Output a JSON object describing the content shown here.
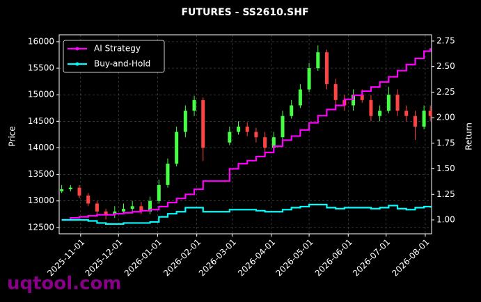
{
  "chart_data": {
    "type": "candlestick",
    "title": "FUTURES - SS2610.SHF",
    "ylabel": "Price",
    "y2label": "Return",
    "watermark": "uqtool.com",
    "x": [
      "2025-10-17",
      "2025-10-24",
      "2025-10-31",
      "2025-11-07",
      "2025-11-14",
      "2025-11-21",
      "2025-11-28",
      "2025-12-05",
      "2025-12-12",
      "2025-12-19",
      "2025-12-26",
      "2026-01-02",
      "2026-01-09",
      "2026-01-16",
      "2026-01-23",
      "2026-01-30",
      "2026-02-06",
      "2026-02-27",
      "2026-03-06",
      "2026-03-13",
      "2026-03-20",
      "2026-03-27",
      "2026-04-03",
      "2026-04-10",
      "2026-04-17",
      "2026-04-24",
      "2026-05-01",
      "2026-05-08",
      "2026-05-15",
      "2026-05-22",
      "2026-05-29",
      "2026-06-05",
      "2026-06-12",
      "2026-06-19",
      "2026-06-26",
      "2026-07-03",
      "2026-07-10",
      "2026-07-17",
      "2026-07-24",
      "2026-07-31",
      "2026-08-05"
    ],
    "open": [
      13180,
      13220,
      13250,
      13100,
      12950,
      12800,
      12750,
      12800,
      12850,
      12900,
      12800,
      13000,
      13300,
      13700,
      14300,
      14700,
      14900,
      14100,
      14300,
      14400,
      14300,
      14200,
      14000,
      14200,
      14600,
      14800,
      15100,
      15500,
      15800,
      15200,
      14900,
      14800,
      15000,
      14900,
      14600,
      14700,
      15000,
      14700,
      14600,
      14400,
      14700
    ],
    "high": [
      13300,
      13300,
      13300,
      13150,
      13000,
      12850,
      12900,
      12950,
      13000,
      12980,
      13080,
      13400,
      13800,
      14400,
      14800,
      14980,
      14950,
      14400,
      14500,
      14480,
      14380,
      14300,
      14300,
      14700,
      14900,
      15200,
      15600,
      15930,
      15850,
      15300,
      15000,
      15100,
      15100,
      15000,
      14800,
      15150,
      15100,
      14800,
      14700,
      14800,
      14800
    ],
    "low": [
      13150,
      13180,
      13050,
      12900,
      12700,
      12650,
      12680,
      12750,
      12800,
      12750,
      12750,
      12950,
      13250,
      13650,
      14200,
      14600,
      13750,
      14050,
      14250,
      14220,
      14100,
      13900,
      13950,
      14150,
      14550,
      14750,
      15050,
      15450,
      15100,
      14800,
      14700,
      14700,
      14850,
      14500,
      14500,
      14650,
      14600,
      14500,
      14150,
      14350,
      14500
    ],
    "close": [
      13220,
      13250,
      13100,
      12950,
      12800,
      12750,
      12800,
      12850,
      12900,
      12800,
      13000,
      13300,
      13700,
      14300,
      14700,
      14900,
      14000,
      14300,
      14400,
      14300,
      14200,
      14000,
      14200,
      14600,
      14800,
      15100,
      15500,
      15800,
      15200,
      14900,
      14800,
      15000,
      14900,
      14600,
      14700,
      15000,
      14700,
      14600,
      14400,
      14700,
      14600
    ],
    "up_color": "#44ff44",
    "down_color": "#ff4444",
    "series": [
      {
        "name": "AI Strategy",
        "color": "#ff00ff",
        "axis": "y2",
        "values": [
          1.0,
          1.02,
          1.03,
          1.04,
          1.05,
          1.05,
          1.06,
          1.07,
          1.08,
          1.09,
          1.1,
          1.13,
          1.17,
          1.21,
          1.25,
          1.3,
          1.38,
          1.5,
          1.55,
          1.58,
          1.62,
          1.66,
          1.72,
          1.78,
          1.82,
          1.88,
          1.95,
          2.02,
          2.08,
          2.12,
          2.18,
          2.22,
          2.26,
          2.3,
          2.35,
          2.4,
          2.46,
          2.52,
          2.58,
          2.65,
          2.68
        ]
      },
      {
        "name": "Buy-and-Hold",
        "color": "#00ffff",
        "axis": "y2",
        "values": [
          1.0,
          1.0,
          1.0,
          0.99,
          0.97,
          0.96,
          0.96,
          0.97,
          0.97,
          0.97,
          0.98,
          1.03,
          1.06,
          1.08,
          1.12,
          1.12,
          1.08,
          1.1,
          1.1,
          1.1,
          1.09,
          1.08,
          1.08,
          1.1,
          1.12,
          1.13,
          1.15,
          1.15,
          1.12,
          1.11,
          1.12,
          1.12,
          1.12,
          1.11,
          1.12,
          1.14,
          1.11,
          1.1,
          1.12,
          1.13,
          1.12
        ]
      }
    ],
    "xlim": [
      "2025-10-15",
      "2026-08-06"
    ],
    "xticks": [
      "2025-11-01",
      "2025-12-01",
      "2026-01-01",
      "2026-02-01",
      "2026-03-01",
      "2026-04-01",
      "2026-05-01",
      "2026-06-01",
      "2026-07-01",
      "2026-08-01"
    ],
    "ylim": [
      12380,
      16130
    ],
    "yticks": [
      12500,
      13000,
      13500,
      14000,
      14500,
      15000,
      15500,
      16000
    ],
    "y2lim": [
      0.864,
      2.811
    ],
    "y2ticks": [
      {
        "value": 1.0,
        "label": "1.00"
      },
      {
        "value": 1.25,
        "label": "1.25"
      },
      {
        "value": 1.5,
        "label": "1.50"
      },
      {
        "value": 1.75,
        "label": "1.75"
      },
      {
        "value": 2.0,
        "label": "2.00"
      },
      {
        "value": 2.25,
        "label": "2.25"
      },
      {
        "value": 2.5,
        "label": "2.50"
      },
      {
        "value": 2.75,
        "label": "2.75"
      }
    ],
    "grid": true,
    "legend": "upper left"
  }
}
